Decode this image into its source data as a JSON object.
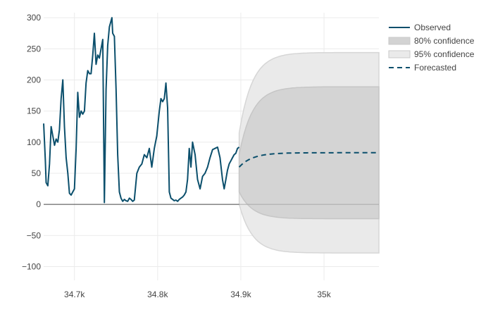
{
  "chart_data": {
    "type": "line",
    "xlim": [
      34663,
      35066
    ],
    "ylim": [
      -122,
      308
    ],
    "x_ticks": [
      {
        "value": 34700,
        "label": "34.7k"
      },
      {
        "value": 34800,
        "label": "34.8k"
      },
      {
        "value": 34900,
        "label": "34.9k"
      },
      {
        "value": 35000,
        "label": "35k"
      }
    ],
    "y_ticks": [
      {
        "value": 300,
        "label": "300"
      },
      {
        "value": 250,
        "label": "250"
      },
      {
        "value": 200,
        "label": "200"
      },
      {
        "value": 150,
        "label": "150"
      },
      {
        "value": 100,
        "label": "100"
      },
      {
        "value": 50,
        "label": "50"
      },
      {
        "value": 0,
        "label": "0"
      },
      {
        "value": -50,
        "label": "−50"
      },
      {
        "value": -100,
        "label": "−100"
      }
    ],
    "grid": true,
    "legend_position": "right",
    "legend": [
      {
        "key": "observed",
        "label": "Observed",
        "symbol": "line",
        "color": "#0b4f6c"
      },
      {
        "key": "ci80",
        "label": "80% confidence",
        "symbol": "band",
        "color": "#d3d3d3"
      },
      {
        "key": "ci95",
        "label": "95% confidence",
        "symbol": "band",
        "color": "#eaeaea"
      },
      {
        "key": "forecast",
        "label": "Forecasted",
        "symbol": "dash",
        "color": "#0b4f6c"
      }
    ],
    "series": [
      {
        "name": "Observed",
        "color": "#0b4f6c",
        "x": [
          34663,
          34665,
          34666,
          34668,
          34670,
          34672,
          34674,
          34676,
          34678,
          34680,
          34682,
          34684,
          34686,
          34688,
          34690,
          34692,
          34694,
          34696,
          34698,
          34700,
          34702,
          34704,
          34706,
          34708,
          34710,
          34712,
          34714,
          34716,
          34718,
          34720,
          34722,
          34724,
          34726,
          34728,
          34730,
          34732,
          34734,
          34736,
          34738,
          34740,
          34742,
          34744,
          34745,
          34746,
          34748,
          34750,
          34752,
          34754,
          34756,
          34758,
          34760,
          34762,
          34764,
          34766,
          34768,
          34770,
          34772,
          34775,
          34778,
          34781,
          34784,
          34787,
          34790,
          34793,
          34796,
          34799,
          34802,
          34804,
          34806,
          34808,
          34810,
          34812,
          34814,
          34816,
          34818,
          34820,
          34822,
          34824,
          34826,
          34828,
          34830,
          34832,
          34834,
          34836,
          34838,
          34840,
          34842,
          34845,
          34848,
          34851,
          34854,
          34857,
          34860,
          34863,
          34866,
          34869,
          34872,
          34875,
          34878,
          34880,
          34882,
          34884,
          34886,
          34888,
          34890,
          34892,
          34894,
          34896,
          34898
        ],
        "values": [
          130,
          70,
          35,
          30,
          65,
          125,
          110,
          95,
          105,
          100,
          120,
          170,
          200,
          125,
          75,
          50,
          18,
          15,
          20,
          25,
          90,
          180,
          140,
          150,
          145,
          150,
          195,
          215,
          210,
          210,
          240,
          275,
          225,
          240,
          235,
          250,
          265,
          3,
          185,
          255,
          285,
          295,
          300,
          275,
          270,
          185,
          80,
          20,
          10,
          5,
          8,
          6,
          5,
          10,
          8,
          5,
          7,
          50,
          60,
          65,
          80,
          75,
          90,
          60,
          90,
          110,
          150,
          170,
          165,
          170,
          195,
          155,
          20,
          10,
          8,
          6,
          7,
          5,
          8,
          10,
          12,
          15,
          20,
          40,
          90,
          60,
          100,
          80,
          40,
          25,
          45,
          50,
          60,
          75,
          88,
          90,
          92,
          75,
          40,
          25,
          40,
          55,
          65,
          70,
          75,
          80,
          82,
          90,
          92
        ]
      }
    ],
    "forecast": {
      "x_start": 34898,
      "x_end": 35066,
      "start_value": 60,
      "level": 83,
      "ci80": {
        "lower_start": 20,
        "upper_start": 80,
        "lower": -23,
        "upper": 189
      },
      "ci95": {
        "lower_start": 0,
        "upper_start": 115,
        "lower": -78,
        "upper": 244
      }
    },
    "title": "",
    "xlabel": "",
    "ylabel": ""
  }
}
